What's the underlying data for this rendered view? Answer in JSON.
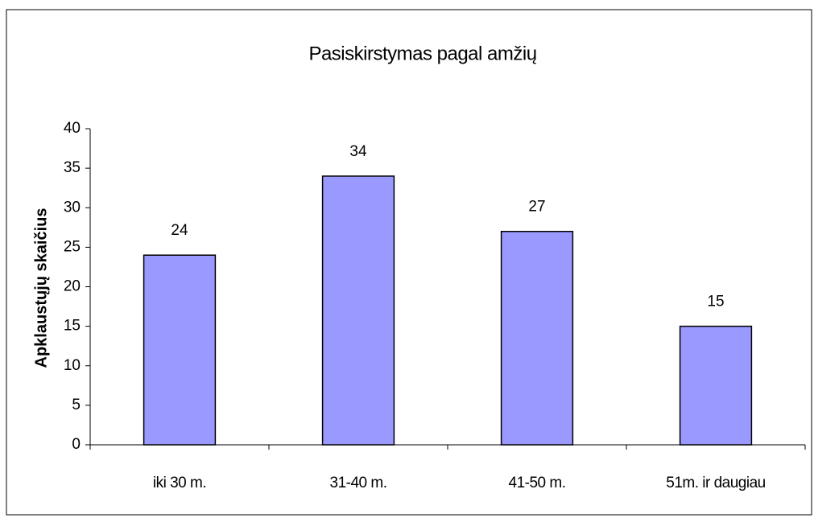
{
  "chart_data": {
    "type": "bar",
    "title": "Pasiskirstymas pagal amžių",
    "y_label": "Apklaustųjų skaičius",
    "categories": [
      "iki 30 m.",
      "31-40 m.",
      "41-50 m.",
      "51m. ir daugiau"
    ],
    "values": [
      24,
      34,
      27,
      15
    ],
    "color": "#9999ff",
    "ylim": [
      0,
      40
    ],
    "yticks": [
      0,
      5,
      10,
      15,
      20,
      25,
      30,
      35,
      40
    ],
    "grid": false
  }
}
